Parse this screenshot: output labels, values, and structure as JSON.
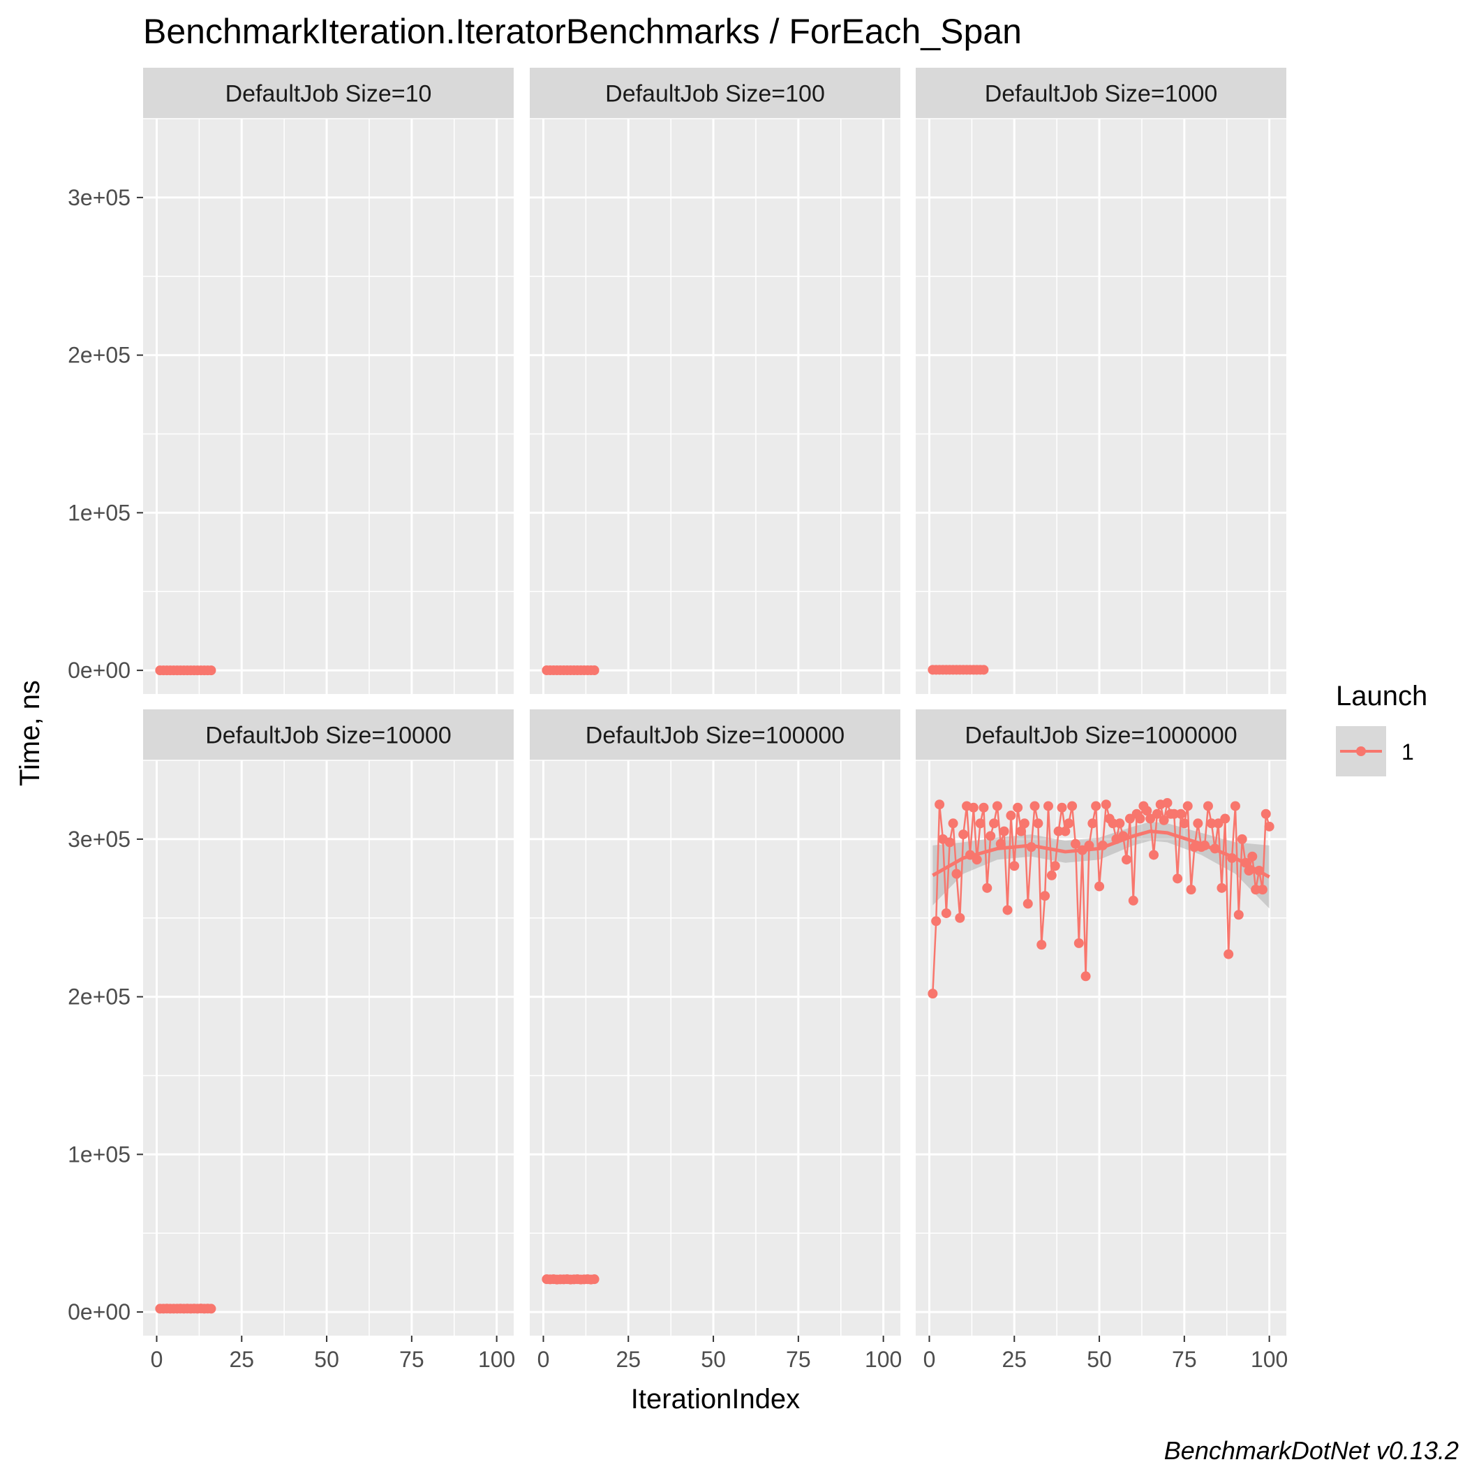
{
  "chart_data": {
    "type": "line",
    "title": "BenchmarkIteration.IteratorBenchmarks / ForEach_Span",
    "xlabel": "IterationIndex",
    "ylabel": "Time, ns",
    "caption": "BenchmarkDotNet v0.13.2",
    "xlim": [
      -4,
      105
    ],
    "ylim": [
      -15000,
      350000
    ],
    "x_ticks": [
      0,
      25,
      50,
      75,
      100
    ],
    "x_tick_labels": [
      "0",
      "25",
      "50",
      "75",
      "100"
    ],
    "y_ticks": [
      0,
      100000,
      200000,
      300000
    ],
    "y_tick_labels": [
      "0e+00",
      "1e+05",
      "2e+05",
      "3e+05"
    ],
    "grid": true,
    "series_color": "#F8766D",
    "legend": {
      "title": "Launch",
      "entries": [
        "1"
      ],
      "position": "right"
    },
    "panels": [
      {
        "strip": "DefaultJob Size=10",
        "series": [
          {
            "launch": "1",
            "x": [
              1,
              2,
              3,
              4,
              5,
              6,
              7,
              8,
              9,
              10,
              11,
              12,
              13,
              14,
              15,
              16
            ],
            "y": [
              8,
              8,
              8,
              8,
              8,
              8,
              8,
              8,
              8,
              8,
              8,
              8,
              8,
              8,
              8,
              8
            ]
          }
        ]
      },
      {
        "strip": "DefaultJob Size=100",
        "series": [
          {
            "launch": "1",
            "x": [
              1,
              2,
              3,
              4,
              5,
              6,
              7,
              8,
              9,
              10,
              11,
              12,
              13,
              14,
              15
            ],
            "y": [
              40,
              40,
              40,
              40,
              40,
              40,
              40,
              40,
              40,
              40,
              40,
              40,
              40,
              40,
              40
            ]
          }
        ]
      },
      {
        "strip": "DefaultJob Size=1000",
        "series": [
          {
            "launch": "1",
            "x": [
              1,
              2,
              3,
              4,
              5,
              6,
              7,
              8,
              9,
              10,
              11,
              12,
              13,
              14,
              15,
              16
            ],
            "y": [
              350,
              350,
              350,
              350,
              350,
              350,
              350,
              350,
              350,
              350,
              350,
              350,
              350,
              350,
              350,
              350
            ]
          }
        ]
      },
      {
        "strip": "DefaultJob Size=10000",
        "series": [
          {
            "launch": "1",
            "x": [
              1,
              2,
              3,
              4,
              5,
              6,
              7,
              8,
              9,
              10,
              11,
              12,
              13,
              14,
              15,
              16
            ],
            "y": [
              2100,
              2100,
              2150,
              2100,
              2100,
              2120,
              2150,
              2100,
              2150,
              2100,
              2150,
              2100,
              2200,
              2100,
              2150,
              2100
            ]
          }
        ]
      },
      {
        "strip": "DefaultJob Size=100000",
        "series": [
          {
            "launch": "1",
            "x": [
              1,
              2,
              3,
              4,
              5,
              6,
              7,
              8,
              9,
              10,
              11,
              12,
              13,
              14,
              15
            ],
            "y": [
              20800,
              20700,
              20800,
              20600,
              20700,
              20700,
              20800,
              20600,
              20700,
              20800,
              20600,
              20700,
              20800,
              20600,
              20800
            ]
          }
        ]
      },
      {
        "strip": "DefaultJob Size=1000000",
        "smooth": {
          "x": [
            1,
            10,
            20,
            30,
            40,
            50,
            60,
            65,
            70,
            80,
            90,
            100
          ],
          "y": [
            277000,
            288000,
            294000,
            296000,
            292000,
            294000,
            302000,
            305000,
            304000,
            297000,
            288000,
            276000
          ],
          "ci_lower": [
            258000,
            278000,
            287000,
            289000,
            285000,
            287000,
            296000,
            299000,
            298000,
            290000,
            278000,
            256000
          ],
          "ci_upper": [
            296000,
            298000,
            301000,
            303000,
            299000,
            301000,
            308000,
            311000,
            310000,
            304000,
            298000,
            296000
          ]
        },
        "series": [
          {
            "launch": "1",
            "x": [
              1,
              2,
              3,
              4,
              5,
              6,
              7,
              8,
              9,
              10,
              11,
              12,
              13,
              14,
              15,
              16,
              17,
              18,
              19,
              20,
              21,
              22,
              23,
              24,
              25,
              26,
              27,
              28,
              29,
              30,
              31,
              32,
              33,
              34,
              35,
              36,
              37,
              38,
              39,
              40,
              41,
              42,
              43,
              44,
              45,
              46,
              47,
              48,
              49,
              50,
              51,
              52,
              53,
              54,
              55,
              56,
              57,
              58,
              59,
              60,
              61,
              62,
              63,
              64,
              65,
              66,
              67,
              68,
              69,
              70,
              71,
              72,
              73,
              74,
              75,
              76,
              77,
              78,
              79,
              80,
              81,
              82,
              83,
              84,
              85,
              86,
              87,
              88,
              89,
              90,
              91,
              92,
              93,
              94,
              95,
              96,
              97,
              98,
              99,
              100
            ],
            "y": [
              202000,
              248000,
              322000,
              300000,
              253000,
              298000,
              310000,
              278000,
              250000,
              303000,
              321000,
              290000,
              320000,
              287000,
              310000,
              320000,
              269000,
              302000,
              310000,
              321000,
              297000,
              305000,
              255000,
              315000,
              283000,
              320000,
              305000,
              310000,
              259000,
              295000,
              321000,
              310000,
              233000,
              264000,
              321000,
              277000,
              283000,
              305000,
              320000,
              305000,
              310000,
              321000,
              297000,
              234000,
              293000,
              213000,
              296000,
              310000,
              321000,
              270000,
              296000,
              322000,
              313000,
              310000,
              300000,
              310000,
              302000,
              287000,
              313000,
              261000,
              316000,
              313000,
              321000,
              318000,
              313000,
              290000,
              316000,
              322000,
              312000,
              323000,
              316000,
              316000,
              275000,
              316000,
              310000,
              321000,
              268000,
              295000,
              310000,
              295000,
              296000,
              321000,
              310000,
              294000,
              310000,
              269000,
              313000,
              227000,
              288000,
              321000,
              252000,
              300000,
              285000,
              280000,
              289000,
              268000,
              280000,
              268000,
              316000,
              308000
            ]
          }
        ]
      }
    ]
  }
}
